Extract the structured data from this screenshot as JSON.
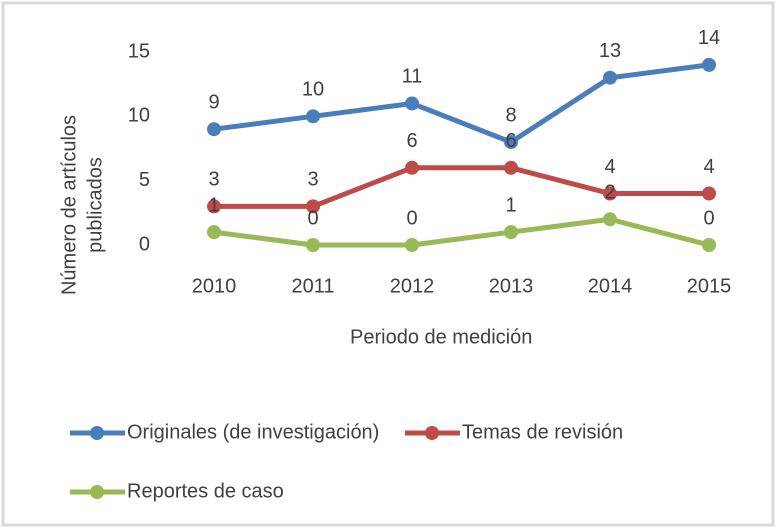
{
  "chart_data": {
    "type": "line",
    "categories": [
      "2010",
      "2011",
      "2012",
      "2013",
      "2014",
      "2015"
    ],
    "series": [
      {
        "name": "Originales (de investigación)",
        "color": "#4a7ebb",
        "values": [
          9,
          10,
          11,
          8,
          13,
          14
        ]
      },
      {
        "name": "Temas de revisión",
        "color": "#be4b48",
        "values": [
          3,
          3,
          6,
          6,
          4,
          4
        ]
      },
      {
        "name": "Reportes de caso",
        "color": "#98b954",
        "values": [
          1,
          0,
          0,
          1,
          2,
          0
        ]
      }
    ],
    "xlabel": "Periodo de medición",
    "ylabel": [
      "Número de artículos",
      "publicados"
    ],
    "ylim": [
      0,
      15
    ],
    "yticks": [
      0,
      5,
      10,
      15
    ],
    "grid": false,
    "legend": "bottom"
  }
}
